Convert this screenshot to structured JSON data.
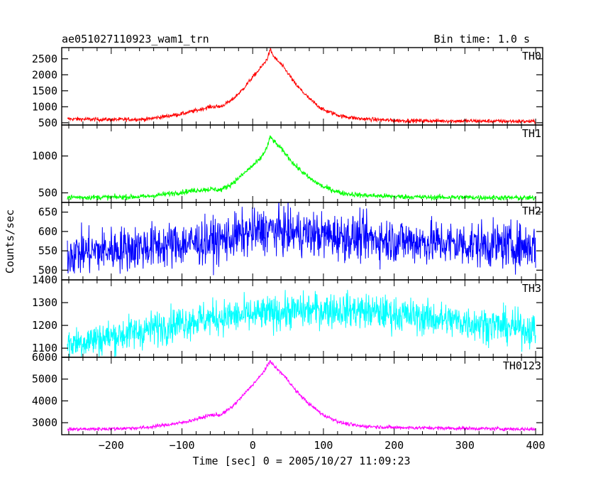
{
  "header": {
    "title": "ae051027110923_wam1_trn",
    "bin_time": "Bin time: 1.0 s"
  },
  "chart_data": {
    "type": "line",
    "title": "ae051027110923_wam1_trn",
    "subtitle": "Bin time: 1.0 s",
    "xlabel": "Time [sec] 0 = 2005/10/27 11:09:23",
    "ylabel": "Counts/sec",
    "xlim": [
      -270,
      410
    ],
    "xticks": [
      -200,
      -100,
      0,
      100,
      200,
      300,
      400
    ],
    "xtick_labels": [
      "−200",
      "−100",
      "0",
      "100",
      "200",
      "300",
      "400"
    ],
    "panels": [
      {
        "name": "TH0",
        "color": "#ff0000",
        "ylim": [
          430,
          2850
        ],
        "yticks": [
          500,
          1000,
          1500,
          2000,
          2500
        ],
        "ytick_labels": [
          "500",
          "1000",
          "1500",
          "2000",
          "2500"
        ],
        "x": [
          -262,
          -200,
          -150,
          -100,
          -75,
          -60,
          -45,
          -30,
          -15,
          0,
          10,
          20,
          25,
          30,
          40,
          50,
          60,
          80,
          100,
          125,
          150,
          200,
          250,
          300,
          350,
          400
        ],
        "y": [
          620,
          600,
          610,
          780,
          910,
          1000,
          1010,
          1200,
          1520,
          1930,
          2180,
          2480,
          2780,
          2560,
          2330,
          2050,
          1720,
          1250,
          900,
          710,
          630,
          570,
          560,
          555,
          550,
          540
        ],
        "noise": 45
      },
      {
        "name": "TH1",
        "color": "#00ff00",
        "ylim": [
          370,
          1420
        ],
        "yticks": [
          500,
          1000
        ],
        "ytick_labels": [
          "500",
          "1000"
        ],
        "x": [
          -262,
          -200,
          -150,
          -100,
          -75,
          -60,
          -45,
          -30,
          -15,
          0,
          10,
          20,
          25,
          30,
          40,
          50,
          60,
          80,
          100,
          125,
          150,
          200,
          250,
          300,
          350,
          400
        ],
        "y": [
          440,
          440,
          450,
          510,
          540,
          550,
          540,
          620,
          740,
          870,
          950,
          1110,
          1260,
          1200,
          1100,
          990,
          870,
          700,
          580,
          500,
          470,
          450,
          440,
          440,
          435,
          430
        ],
        "noise": 25
      },
      {
        "name": "TH2",
        "color": "#0000ff",
        "ylim": [
          475,
          675
        ],
        "yticks": [
          500,
          550,
          600,
          650
        ],
        "ytick_labels": [
          "500",
          "550",
          "600",
          "650"
        ],
        "x": [
          -262,
          -200,
          -100,
          -50,
          0,
          25,
          50,
          100,
          200,
          300,
          400
        ],
        "y": [
          543,
          553,
          568,
          576,
          598,
          605,
          598,
          590,
          577,
          567,
          562
        ],
        "noise": 42
      },
      {
        "name": "TH3",
        "color": "#00ffff",
        "ylim": [
          1060,
          1400
        ],
        "yticks": [
          1100,
          1200,
          1300,
          1400
        ],
        "ytick_labels": [
          "1100",
          "1200",
          "1300",
          "1400"
        ],
        "x": [
          -262,
          -200,
          -150,
          -100,
          -50,
          0,
          50,
          100,
          150,
          200,
          300,
          400
        ],
        "y": [
          1120,
          1150,
          1180,
          1215,
          1235,
          1245,
          1260,
          1270,
          1265,
          1250,
          1215,
          1180
        ],
        "noise": 55
      },
      {
        "name": "TH0123",
        "color": "#ff00ff",
        "ylim": [
          2450,
          6000
        ],
        "yticks": [
          3000,
          4000,
          5000,
          6000
        ],
        "ytick_labels": [
          "3000",
          "4000",
          "5000",
          "6000"
        ],
        "x": [
          -262,
          -200,
          -150,
          -100,
          -75,
          -60,
          -45,
          -30,
          -15,
          0,
          10,
          20,
          25,
          30,
          40,
          50,
          60,
          80,
          100,
          125,
          150,
          200,
          250,
          300,
          350,
          400
        ],
        "y": [
          2700,
          2720,
          2780,
          3000,
          3200,
          3350,
          3360,
          3700,
          4200,
          4750,
          5100,
          5550,
          5850,
          5600,
          5300,
          4950,
          4500,
          3850,
          3350,
          3000,
          2850,
          2780,
          2760,
          2740,
          2720,
          2700
        ],
        "noise": 60
      }
    ]
  }
}
